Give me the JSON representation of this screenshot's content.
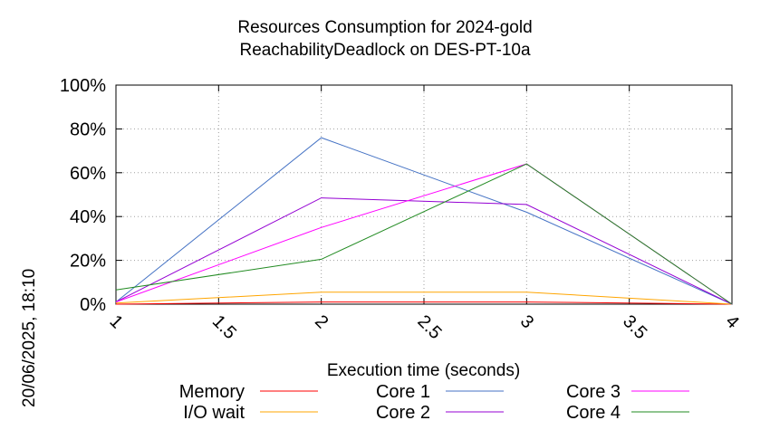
{
  "chart_data": {
    "type": "line",
    "title": "Resources Consumption for 2024-gold",
    "subtitle": "ReachabilityDeadlock on DES-PT-10a",
    "xlabel": "Execution time (seconds)",
    "ylabel": "",
    "side_label": "20/06/2025, 18:10",
    "xlim": [
      1,
      4
    ],
    "ylim": [
      0,
      100
    ],
    "x_ticks": [
      "1",
      "1.5",
      "2",
      "2.5",
      "3",
      "3.5",
      "4"
    ],
    "y_ticks": [
      "0%",
      "20%",
      "40%",
      "60%",
      "80%",
      "100%"
    ],
    "grid": true,
    "legend_position": "bottom",
    "x": [
      1,
      2,
      3,
      4
    ],
    "series": [
      {
        "name": "Memory",
        "color": "#ff0000",
        "values": [
          0,
          1,
          1,
          0
        ]
      },
      {
        "name": "I/O wait",
        "color": "#ffa500",
        "values": [
          0.5,
          5.5,
          5.5,
          0
        ]
      },
      {
        "name": "Core 1",
        "color": "#4472c4",
        "values": [
          1,
          76,
          42,
          0
        ]
      },
      {
        "name": "Core 2",
        "color": "#9400d3",
        "values": [
          1,
          48.5,
          45.5,
          0
        ]
      },
      {
        "name": "Core 3",
        "color": "#ff00ff",
        "values": [
          1,
          35,
          64,
          0
        ]
      },
      {
        "name": "Core 4",
        "color": "#228b22",
        "values": [
          6.5,
          20.5,
          64,
          0
        ]
      }
    ]
  }
}
